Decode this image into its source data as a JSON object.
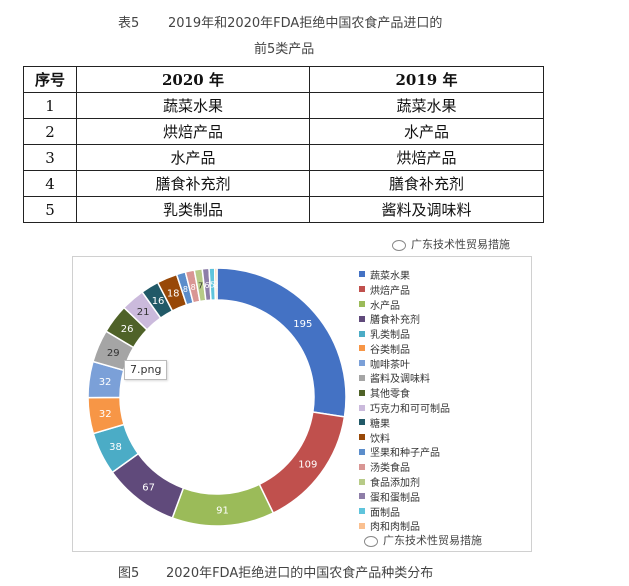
{
  "table_caption": {
    "label": "表5",
    "line1": "2019年和2020年FDA拒绝中国农食产品进口的",
    "line2": "前5类产品"
  },
  "table": {
    "headers": [
      "序号",
      "2020 年",
      "2019 年"
    ],
    "rows": [
      [
        "1",
        "蔬菜水果",
        "蔬菜水果"
      ],
      [
        "2",
        "烘焙产品",
        "水产品"
      ],
      [
        "3",
        "水产品",
        "烘焙产品"
      ],
      [
        "4",
        "膳食补充剂",
        "膳食补充剂"
      ],
      [
        "5",
        "乳类制品",
        "酱料及调味料"
      ]
    ]
  },
  "watermark": "广东技术性贸易措施",
  "tooltip": "7.png",
  "figure_caption": {
    "label": "图5",
    "title": "2020年FDA拒绝进口的中国农食产品种类分布"
  },
  "chart_data": {
    "type": "pie",
    "donut": true,
    "categories": [
      "蔬菜水果",
      "烘焙产品",
      "水产品",
      "膳食补充剂",
      "乳类制品",
      "谷类制品",
      "咖啡茶叶",
      "酱料及调味料",
      "其他零食",
      "巧克力和可可制品",
      "糖果",
      "饮料",
      "坚果和种子产品",
      "汤类食品",
      "食品添加剂",
      "蛋和蛋制品",
      "面制品",
      "肉和肉制品"
    ],
    "values": [
      195,
      109,
      91,
      67,
      38,
      32,
      32,
      29,
      26,
      21,
      16,
      18,
      8,
      8,
      7,
      6,
      5,
      2
    ],
    "colors": [
      "#4472C4",
      "#C0504D",
      "#9BBB59",
      "#604A7B",
      "#4BACC6",
      "#F79646",
      "#7BA0D8",
      "#A5A5A5",
      "#4F6228",
      "#CBBADC",
      "#215967",
      "#984807",
      "#5B8DCB",
      "#D99694",
      "#B7CB87",
      "#8E7EA8",
      "#5FC4DC",
      "#FAC090"
    ],
    "legend": "right"
  }
}
